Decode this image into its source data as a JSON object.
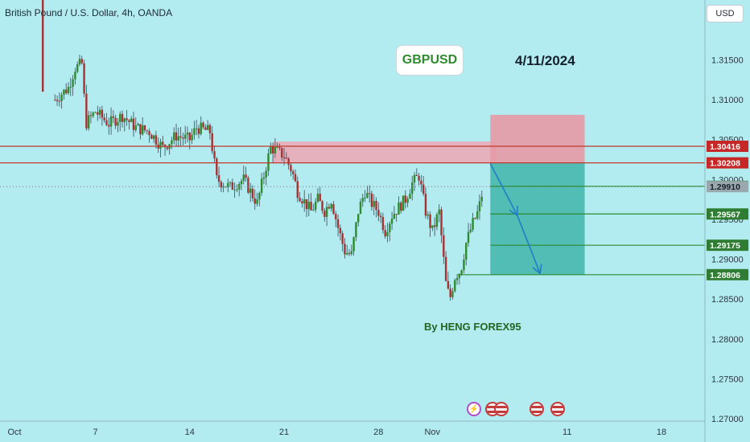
{
  "header": {
    "title": "British Pound / U.S. Dollar, 4h, OANDA"
  },
  "currency": {
    "label": "USD"
  },
  "annotations": {
    "symbol": "GBPUSD",
    "date": "4/11/2024",
    "author": "By HENG FOREX95"
  },
  "events": [
    {
      "icon": "lightning-icon"
    },
    {
      "icon": "us-flag-icon"
    },
    {
      "icon": "us-flag-icon"
    },
    {
      "icon": "uk-flag-icon"
    },
    {
      "icon": "us-flag-icon"
    }
  ],
  "chart_data": {
    "type": "candlestick",
    "ylim": [
      1.2697,
      1.3225
    ],
    "y_ticks": [
      1.27,
      1.275,
      1.28,
      1.285,
      1.29,
      1.295,
      1.3,
      1.305,
      1.31,
      1.315
    ],
    "y_tick_labels": [
      "1.27000",
      "1.27500",
      "1.28000",
      "1.28500",
      "1.29000",
      "1.29500",
      "1.30000",
      "1.30500",
      "1.31000",
      "1.31500"
    ],
    "x_tick_labels": [
      {
        "label": "Oct",
        "day": 0
      },
      {
        "label": "7",
        "day": 6
      },
      {
        "label": "14",
        "day": 13
      },
      {
        "label": "21",
        "day": 20
      },
      {
        "label": "28",
        "day": 27
      },
      {
        "label": "Nov",
        "day": 31
      },
      {
        "label": "11",
        "day": 41
      },
      {
        "label": "18",
        "day": 48
      }
    ],
    "close_path": [
      [
        0.0,
        1.3225
      ],
      [
        2.2,
        1.3225
      ],
      [
        2.3,
        1.311
      ],
      [
        3.0,
        1.31
      ],
      [
        4.0,
        1.3115
      ],
      [
        4.5,
        1.314
      ],
      [
        5.0,
        1.3145
      ],
      [
        5.3,
        1.307
      ],
      [
        6.0,
        1.3085
      ],
      [
        7.0,
        1.307
      ],
      [
        8.0,
        1.308
      ],
      [
        9.0,
        1.3065
      ],
      [
        10.0,
        1.306
      ],
      [
        11.0,
        1.304
      ],
      [
        12.0,
        1.3055
      ],
      [
        13.0,
        1.305
      ],
      [
        13.5,
        1.3065
      ],
      [
        14.5,
        1.306
      ],
      [
        15.0,
        1.3
      ],
      [
        16.0,
        1.299
      ],
      [
        17.0,
        1.3
      ],
      [
        17.5,
        1.2985
      ],
      [
        18.0,
        1.297
      ],
      [
        18.5,
        1.3005
      ],
      [
        19.0,
        1.304
      ],
      [
        20.0,
        1.303
      ],
      [
        20.6,
        1.301
      ],
      [
        21.0,
        1.2985
      ],
      [
        22.0,
        1.296
      ],
      [
        22.5,
        1.2975
      ],
      [
        23.0,
        1.296
      ],
      [
        23.5,
        1.2975
      ],
      [
        24.0,
        1.294
      ],
      [
        24.5,
        1.291
      ],
      [
        25.0,
        1.2905
      ],
      [
        25.5,
        1.296
      ],
      [
        26.0,
        1.2985
      ],
      [
        26.5,
        1.297
      ],
      [
        27.0,
        1.296
      ],
      [
        27.5,
        1.2935
      ],
      [
        28.0,
        1.2955
      ],
      [
        29.0,
        1.2975
      ],
      [
        29.5,
        1.2995
      ],
      [
        30.0,
        1.3005
      ],
      [
        30.5,
        1.296
      ],
      [
        31.0,
        1.2935
      ],
      [
        31.5,
        1.296
      ],
      [
        32.0,
        1.287
      ],
      [
        32.3,
        1.285
      ],
      [
        32.7,
        1.288
      ],
      [
        33.1,
        1.2885
      ],
      [
        33.5,
        1.292
      ],
      [
        34.0,
        1.2945
      ],
      [
        34.4,
        1.296
      ],
      [
        34.8,
        1.299
      ]
    ],
    "resistance_lines": [
      1.30416,
      1.30208
    ],
    "resistance_zone": {
      "y0": 1.30208,
      "y1": 1.30475,
      "day0": 19.2,
      "day1": 35.7
    },
    "position": {
      "entry": 1.30208,
      "stop": 1.3081,
      "target": 1.28806,
      "day0": 35.3,
      "day1": 42.3
    },
    "target_levels": [
      1.29914,
      1.29567,
      1.29175,
      1.28806
    ],
    "current_price": 1.2991,
    "price_labels": [
      {
        "value": 1.30416,
        "text": "1.30416",
        "style": "red"
      },
      {
        "value": 1.30208,
        "text": "1.30208",
        "style": "red"
      },
      {
        "value": 1.29914,
        "text": "1.29914",
        "style": "green"
      },
      {
        "value": 1.2991,
        "text": "1.29910",
        "style": "gray"
      },
      {
        "value": 1.29567,
        "text": "1.29567",
        "style": "green"
      },
      {
        "value": 1.29175,
        "text": "1.29175",
        "style": "green"
      },
      {
        "value": 1.28806,
        "text": "1.28806",
        "style": "green"
      }
    ],
    "forecast_arrow": [
      [
        35.3,
        1.302
      ],
      [
        37.3,
        1.2955
      ],
      [
        39.0,
        1.2882
      ]
    ],
    "colors": {
      "up": "#2e8b2e",
      "down": "#a83232",
      "wick": "#3b4a55",
      "resistance": "#c0392b",
      "stop_zone": "#e79aa5",
      "target_zone": "#3fb5aa",
      "level": "#2e8b2e",
      "arrow": "#1f7fc4"
    }
  }
}
